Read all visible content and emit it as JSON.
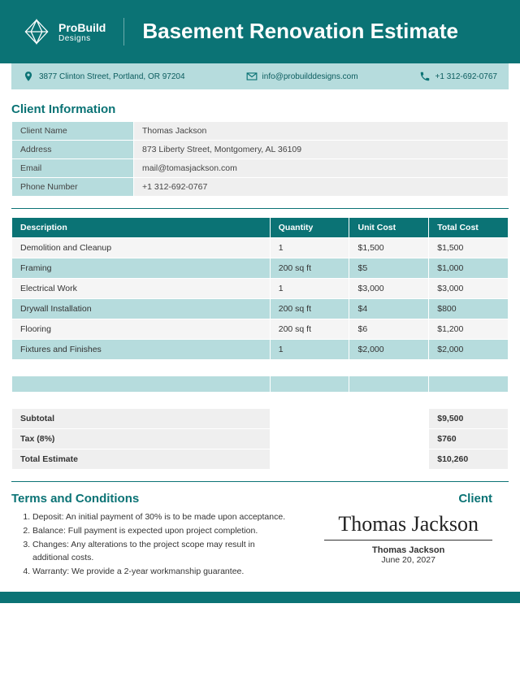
{
  "brand": {
    "name": "ProBuild",
    "sub": "Designs"
  },
  "title": "Basement Renovation Estimate",
  "contact": {
    "address": "3877 Clinton Street, Portland, OR 97204",
    "email": "info@probuilddesigns.com",
    "phone": "+1 312-692-0767"
  },
  "colors": {
    "primary": "#0b7375",
    "tint": "#b6dcdd",
    "gray": "#efefef",
    "text": "#333333"
  },
  "client_section_title": "Client Information",
  "client": {
    "labels": {
      "name": "Client Name",
      "address": "Address",
      "email": "Email",
      "phone": "Phone Number"
    },
    "name": "Thomas Jackson",
    "address": "873 Liberty Street, Montgomery, AL 36109",
    "email": "mail@tomasjackson.com",
    "phone": "+1 312-692-0767"
  },
  "items_header": {
    "desc": "Description",
    "qty": "Quantity",
    "unit": "Unit Cost",
    "total": "Total Cost"
  },
  "items": [
    {
      "desc": "Demolition and Cleanup",
      "qty": "1",
      "unit": "$1,500",
      "total": "$1,500"
    },
    {
      "desc": "Framing",
      "qty": "200 sq ft",
      "unit": "$5",
      "total": "$1,000"
    },
    {
      "desc": "Electrical Work",
      "qty": "1",
      "unit": "$3,000",
      "total": "$3,000"
    },
    {
      "desc": "Drywall Installation",
      "qty": "200 sq ft",
      "unit": "$4",
      "total": "$800"
    },
    {
      "desc": "Flooring",
      "qty": "200 sq ft",
      "unit": "$6",
      "total": "$1,200"
    },
    {
      "desc": "Fixtures and Finishes",
      "qty": "1",
      "unit": "$2,000",
      "total": "$2,000"
    }
  ],
  "totals": {
    "subtotal_label": "Subtotal",
    "subtotal": "$9,500",
    "tax_label": "Tax (8%)",
    "tax": "$760",
    "total_label": "Total Estimate",
    "total": "$10,260"
  },
  "terms_title": "Terms and Conditions",
  "terms": [
    "Deposit: An initial payment of 30% is to be made upon acceptance.",
    "Balance: Full payment is expected upon project completion.",
    "Changes: Any alterations to the project scope may result in additional costs.",
    "Warranty: We provide a 2-year workmanship guarantee."
  ],
  "signature": {
    "title": "Client",
    "script": "Thomas Jackson",
    "name": "Thomas Jackson",
    "date": "June 20, 2027"
  }
}
